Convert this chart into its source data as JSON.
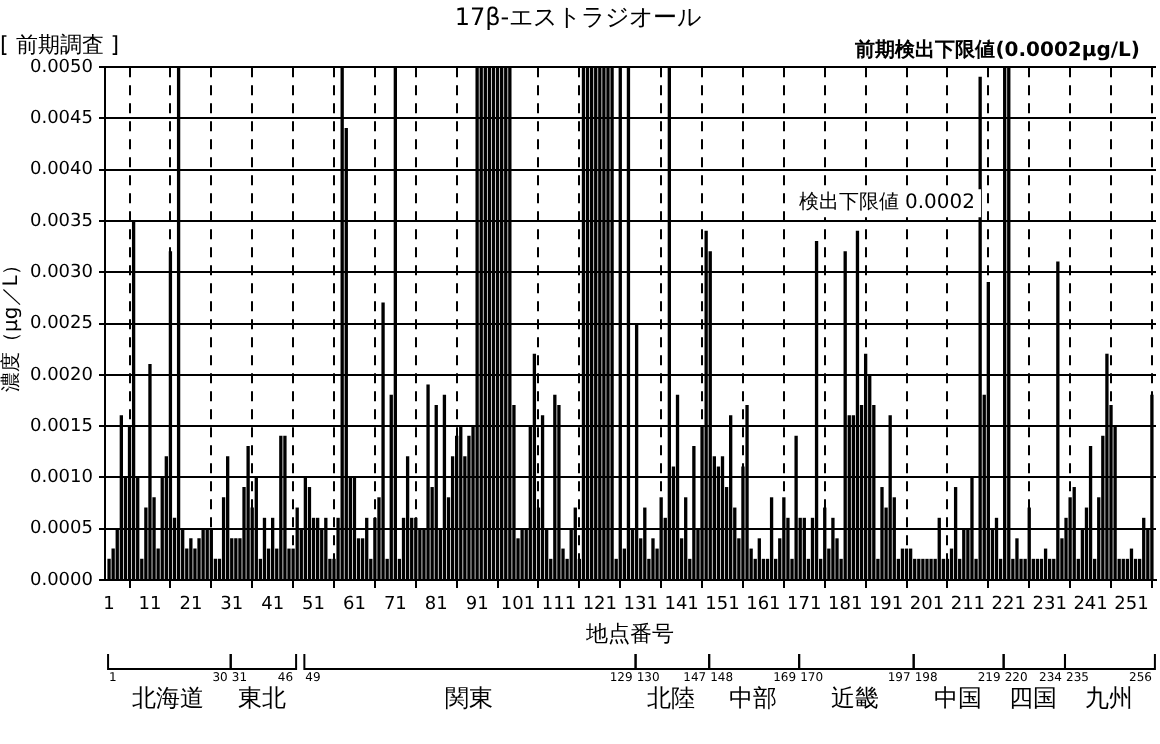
{
  "chart_data": {
    "type": "bar",
    "title": "17β-エストラジオール",
    "subtitle": "[ 前期調査 ]",
    "xlabel": "地点番号",
    "ylabel": "濃度（μg／L）",
    "color": "#000000",
    "grid": true,
    "x": [
      1,
      2,
      3,
      4,
      5,
      6,
      7,
      8,
      9,
      10,
      11,
      12,
      13,
      14,
      15,
      16,
      17,
      18,
      19,
      20,
      21,
      22,
      23,
      24,
      25,
      26,
      27,
      28,
      29,
      30,
      31,
      32,
      33,
      34,
      35,
      36,
      37,
      38,
      39,
      40,
      41,
      42,
      43,
      44,
      45,
      46,
      47,
      48,
      49,
      50,
      51,
      52,
      53,
      54,
      55,
      56,
      57,
      58,
      59,
      60,
      61,
      62,
      63,
      64,
      65,
      66,
      67,
      68,
      69,
      70,
      71,
      72,
      73,
      74,
      75,
      76,
      77,
      78,
      79,
      80,
      81,
      82,
      83,
      84,
      85,
      86,
      87,
      88,
      89,
      90,
      91,
      92,
      93,
      94,
      95,
      96,
      97,
      98,
      99,
      100,
      101,
      102,
      103,
      104,
      105,
      106,
      107,
      108,
      109,
      110,
      111,
      112,
      113,
      114,
      115,
      116,
      117,
      118,
      119,
      120,
      121,
      122,
      123,
      124,
      125,
      126,
      127,
      128,
      129,
      130,
      131,
      132,
      133,
      134,
      135,
      136,
      137,
      138,
      139,
      140,
      141,
      142,
      143,
      144,
      145,
      146,
      147,
      148,
      149,
      150,
      151,
      152,
      153,
      154,
      155,
      156,
      157,
      158,
      159,
      160,
      161,
      162,
      163,
      164,
      165,
      166,
      167,
      168,
      169,
      170,
      171,
      172,
      173,
      174,
      175,
      176,
      177,
      178,
      179,
      180,
      181,
      182,
      183,
      184,
      185,
      186,
      187,
      188,
      189,
      190,
      191,
      192,
      193,
      194,
      195,
      196,
      197,
      198,
      199,
      200,
      201,
      202,
      203,
      204,
      205,
      206,
      207,
      208,
      209,
      210,
      211,
      212,
      213,
      214,
      215,
      216,
      217,
      218,
      219,
      220,
      221,
      222,
      223,
      224,
      225,
      226,
      227,
      228,
      229,
      230,
      231,
      232,
      233,
      234,
      235,
      236,
      237,
      238,
      239,
      240,
      241,
      242,
      243,
      244,
      245,
      246,
      247,
      248,
      249,
      250,
      251,
      252,
      253,
      254,
      255,
      256
    ],
    "values": [
      0.0002,
      0.0003,
      0.0005,
      0.0016,
      0.001,
      0.0015,
      0.0035,
      0.001,
      0.0002,
      0.0007,
      0.0021,
      0.0008,
      0.0003,
      0.001,
      0.0012,
      0.0032,
      0.0006,
      0.005,
      0.0005,
      0.0003,
      0.0004,
      0.0003,
      0.0004,
      0.0005,
      0.0005,
      0.0005,
      0.0002,
      0.0002,
      0.0008,
      0.0012,
      0.0004,
      0.0004,
      0.0004,
      0.0009,
      0.0013,
      0.0007,
      0.001,
      0.0002,
      0.0006,
      0.0003,
      0.0006,
      0.0003,
      0.0014,
      0.0014,
      0.0003,
      0.0003,
      0.0007,
      0.0005,
      0.001,
      0.0009,
      0.0006,
      0.0006,
      0.0005,
      0.0006,
      0.0002,
      0.0002,
      0.0006,
      0.005,
      0.0044,
      0.001,
      0.001,
      0.0004,
      0.0004,
      0.0006,
      0.0002,
      0.0006,
      0.0008,
      0.0027,
      0.0002,
      0.0018,
      0.005,
      0.0002,
      0.0006,
      0.0012,
      0.0006,
      0.0006,
      0.0005,
      0.0005,
      0.0019,
      0.0009,
      0.0017,
      0.0005,
      0.0018,
      0.0008,
      0.0012,
      0.0014,
      0.0015,
      0.0012,
      0.0014,
      0.0015,
      0.005,
      0.005,
      0.005,
      0.005,
      0.005,
      0.005,
      0.005,
      0.005,
      0.005,
      0.0017,
      0.0004,
      0.0005,
      0.0005,
      0.0015,
      0.0022,
      0.0007,
      0.0016,
      0.0005,
      0.0002,
      0.0018,
      0.0017,
      0.0003,
      0.0002,
      0.0005,
      0.0007,
      0.0002,
      0.005,
      0.005,
      0.005,
      0.005,
      0.005,
      0.005,
      0.005,
      0.005,
      0.0002,
      0.005,
      0.0003,
      0.005,
      0.0005,
      0.0025,
      0.0004,
      0.0007,
      0.0002,
      0.0004,
      0.0003,
      0.0008,
      0.0006,
      0.005,
      0.0011,
      0.0018,
      0.0004,
      0.0008,
      0.0002,
      0.0013,
      0.0005,
      0.0015,
      0.0034,
      0.0032,
      0.0012,
      0.0011,
      0.0012,
      0.0009,
      0.0016,
      0.0007,
      0.0004,
      0.0011,
      0.0017,
      0.0003,
      0.0002,
      0.0004,
      0.0002,
      0.0002,
      0.0008,
      0.0002,
      0.0004,
      0.0008,
      0.0006,
      0.0002,
      0.0014,
      0.0006,
      0.0006,
      0.0002,
      0.0006,
      0.0033,
      0.0002,
      0.0007,
      0.0003,
      0.0006,
      0.0004,
      0.0002,
      0.0032,
      0.0016,
      0.0016,
      0.0034,
      0.0017,
      0.0022,
      0.002,
      0.0017,
      0.0002,
      0.0009,
      0.0007,
      0.0016,
      0.0008,
      0.0002,
      0.0003,
      0.0003,
      0.0003,
      0.0002,
      0.0002,
      0.0002,
      0.0002,
      0.0002,
      0.0002,
      0.0006,
      0.0002,
      0.0002,
      0.0003,
      0.0009,
      0.0002,
      0.0005,
      0.0005,
      0.001,
      0.0002,
      0.0049,
      0.0018,
      0.0029,
      0.0005,
      0.0006,
      0.0002,
      0.005,
      0.005,
      0.0002,
      0.0004,
      0.0002,
      0.0002,
      0.0007,
      0.0002,
      0.0002,
      0.0002,
      0.0003,
      0.0002,
      0.0002,
      0.0031,
      0.0004,
      0.0006,
      0.0008,
      0.0009,
      0.0002,
      0.0005,
      0.0007,
      0.0013,
      0.0002,
      0.0008,
      0.0014,
      0.0022,
      0.0017,
      0.0015,
      0.0002,
      0.0002,
      0.0002,
      0.0003,
      0.0002,
      0.0002,
      0.0006,
      0.0005,
      0.0018
    ],
    "xlim": [
      0,
      257
    ],
    "xticks": [
      1,
      11,
      21,
      31,
      41,
      51,
      61,
      71,
      81,
      91,
      101,
      111,
      121,
      131,
      141,
      151,
      161,
      171,
      181,
      191,
      201,
      211,
      221,
      231,
      241,
      251
    ],
    "ylim": [
      0,
      0.005
    ],
    "yticks": [
      {
        "value": 0,
        "label": "0.0000"
      },
      {
        "value": 0.0005,
        "label": "0.0005"
      },
      {
        "value": 0.001,
        "label": "0.0010"
      },
      {
        "value": 0.0015,
        "label": "0.0015"
      },
      {
        "value": 0.002,
        "label": "0.0020"
      },
      {
        "value": 0.0025,
        "label": "0.0025"
      },
      {
        "value": 0.003,
        "label": "0.0030"
      },
      {
        "value": 0.0035,
        "label": "0.0035"
      },
      {
        "value": 0.004,
        "label": "0.0040"
      },
      {
        "value": 0.0045,
        "label": "0.0045"
      },
      {
        "value": 0.005,
        "label": "0.0050"
      }
    ],
    "annotations": [
      "前期検出下限値(0.0002μg/L)",
      "検出下限値 0.0002",
      "1",
      "30",
      "北海道",
      "31",
      "46",
      "東北",
      "49",
      "129",
      "関東",
      "130",
      "147",
      "北陸",
      "148",
      "169",
      "中部",
      "170",
      "197",
      "近畿",
      "198",
      "219",
      "中国",
      "220",
      "234",
      "四国",
      "235",
      "256",
      "九州"
    ]
  }
}
